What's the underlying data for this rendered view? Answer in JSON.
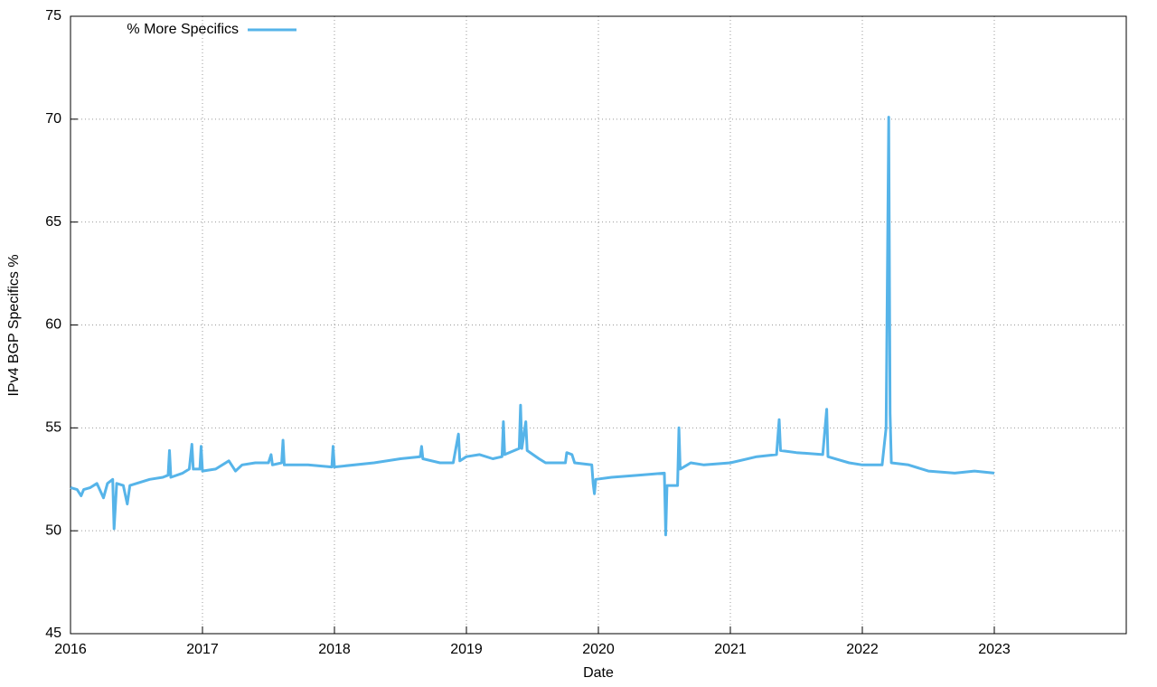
{
  "chart_data": {
    "type": "line",
    "xlabel": "Date",
    "ylabel": "IPv4 BGP Specifics %",
    "xlim": [
      2016,
      2024
    ],
    "xticks": [
      2016,
      2017,
      2018,
      2019,
      2020,
      2021,
      2022,
      2023
    ],
    "ylim": [
      45,
      75
    ],
    "yticks": [
      45,
      50,
      55,
      60,
      65,
      70,
      75
    ],
    "grid": true,
    "legend": "top-left",
    "x": [
      2016.0,
      2016.05,
      2016.08,
      2016.1,
      2016.15,
      2016.2,
      2016.25,
      2016.28,
      2016.32,
      2016.33,
      2016.35,
      2016.4,
      2016.43,
      2016.45,
      2016.5,
      2016.6,
      2016.7,
      2016.74,
      2016.75,
      2016.76,
      2016.85,
      2016.9,
      2016.92,
      2016.93,
      2016.98,
      2016.99,
      2017.0,
      2017.1,
      2017.2,
      2017.25,
      2017.3,
      2017.4,
      2017.5,
      2017.52,
      2017.53,
      2017.6,
      2017.61,
      2017.62,
      2017.8,
      2017.98,
      2017.99,
      2018.0,
      2018.3,
      2018.5,
      2018.65,
      2018.66,
      2018.67,
      2018.8,
      2018.9,
      2018.94,
      2018.95,
      2019.0,
      2019.1,
      2019.2,
      2019.27,
      2019.28,
      2019.29,
      2019.4,
      2019.41,
      2019.42,
      2019.45,
      2019.46,
      2019.55,
      2019.6,
      2019.75,
      2019.76,
      2019.8,
      2019.82,
      2019.95,
      2019.96,
      2019.97,
      2019.98,
      2020.1,
      2020.3,
      2020.5,
      2020.51,
      2020.52,
      2020.6,
      2020.61,
      2020.62,
      2020.7,
      2020.8,
      2021.0,
      2021.2,
      2021.35,
      2021.37,
      2021.38,
      2021.5,
      2021.7,
      2021.73,
      2021.74,
      2021.9,
      2022.0,
      2022.15,
      2022.18,
      2022.2,
      2022.21,
      2022.22,
      2022.35,
      2022.5,
      2022.7,
      2022.85,
      2023.0
    ],
    "series": [
      {
        "name": "% More Specifics",
        "color": "#56b4e9",
        "values": [
          52.1,
          52.0,
          51.7,
          52.0,
          52.1,
          52.3,
          51.6,
          52.3,
          52.5,
          50.1,
          52.3,
          52.2,
          51.3,
          52.2,
          52.3,
          52.5,
          52.6,
          52.7,
          53.9,
          52.6,
          52.8,
          53.0,
          54.2,
          53.0,
          53.0,
          54.1,
          52.9,
          53.0,
          53.4,
          52.9,
          53.2,
          53.3,
          53.3,
          53.7,
          53.2,
          53.3,
          54.4,
          53.2,
          53.2,
          53.1,
          54.1,
          53.1,
          53.3,
          53.5,
          53.6,
          54.1,
          53.5,
          53.3,
          53.3,
          54.7,
          53.4,
          53.6,
          53.7,
          53.5,
          53.6,
          55.3,
          53.7,
          54.0,
          56.1,
          54.0,
          55.3,
          53.9,
          53.5,
          53.3,
          53.3,
          53.8,
          53.7,
          53.3,
          53.2,
          52.3,
          51.8,
          52.5,
          52.6,
          52.7,
          52.8,
          49.8,
          52.2,
          52.2,
          55.0,
          53.0,
          53.3,
          53.2,
          53.3,
          53.6,
          53.7,
          55.4,
          53.9,
          53.8,
          53.7,
          55.9,
          53.6,
          53.3,
          53.2,
          53.2,
          55.0,
          70.1,
          55.7,
          53.3,
          53.2,
          52.9,
          52.8,
          52.9,
          52.8
        ]
      }
    ]
  }
}
